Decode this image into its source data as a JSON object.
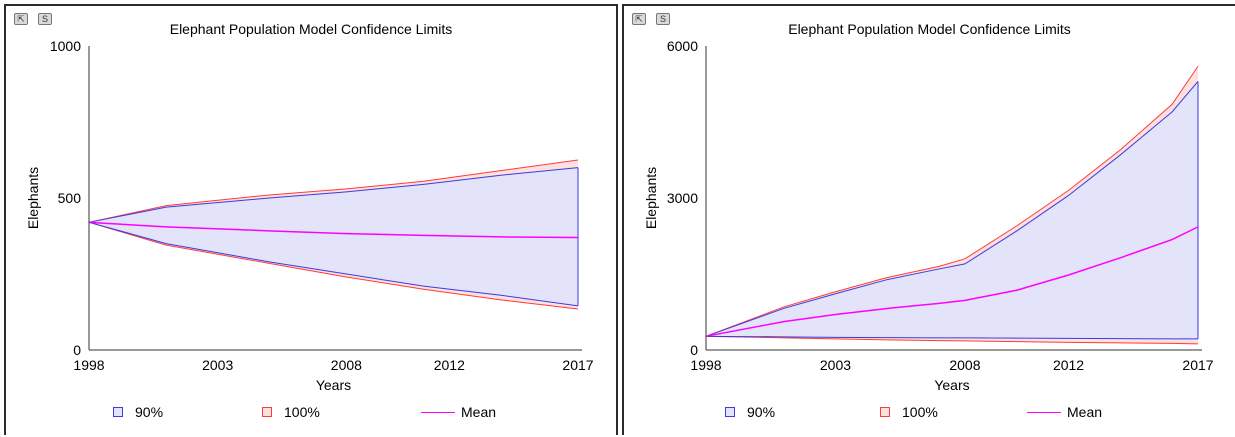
{
  "colors": {
    "band90_stroke": "#3b3be0",
    "band90_fill": "#e3e3fa",
    "band100_stroke": "#ff3b3b",
    "band100_fill": "#fde0e0",
    "mean": "#ff00ff"
  },
  "buttons": {
    "expand_icon": "expand-icon",
    "snapshot_label": "S"
  },
  "chart_data": [
    {
      "type": "area",
      "title": "Elephant Population Model Confidence Limits",
      "xlabel": "Years",
      "ylabel": "Elephants",
      "x_ticks": [
        "1998",
        "2003",
        "2008",
        "2012",
        "2017"
      ],
      "y_ticks": [
        "0",
        "500",
        "1000"
      ],
      "xlim": [
        1998,
        2017
      ],
      "ylim": [
        0,
        1000
      ],
      "legend": [
        "90%",
        "100%",
        "Mean"
      ],
      "legend_position": "bottom",
      "x": [
        1998,
        2001,
        2005,
        2008,
        2011,
        2014,
        2017
      ],
      "series": [
        {
          "name": "100%",
          "role": "band",
          "upper": [
            420,
            475,
            510,
            530,
            555,
            590,
            625
          ],
          "lower": [
            420,
            345,
            285,
            240,
            200,
            165,
            135
          ]
        },
        {
          "name": "90%",
          "role": "band",
          "upper": [
            420,
            470,
            500,
            520,
            545,
            575,
            600
          ],
          "lower": [
            420,
            350,
            290,
            250,
            210,
            180,
            145
          ]
        },
        {
          "name": "Mean",
          "role": "line",
          "values": [
            420,
            405,
            392,
            383,
            377,
            372,
            370
          ]
        }
      ]
    },
    {
      "type": "area",
      "title": "Elephant Population Model Confidence Limits",
      "xlabel": "Years",
      "ylabel": "Elephants",
      "x_ticks": [
        "1998",
        "2003",
        "2008",
        "2012",
        "2017"
      ],
      "y_ticks": [
        "0",
        "3000",
        "6000"
      ],
      "xlim": [
        1998,
        2017
      ],
      "ylim": [
        0,
        6000
      ],
      "legend": [
        "90%",
        "100%",
        "Mean"
      ],
      "legend_position": "bottom",
      "x": [
        1998,
        2001,
        2003,
        2005,
        2007,
        2008,
        2010,
        2012,
        2014,
        2016,
        2017
      ],
      "series": [
        {
          "name": "100%",
          "role": "band",
          "upper": [
            270,
            850,
            1150,
            1430,
            1650,
            1800,
            2450,
            3150,
            3950,
            4850,
            5600
          ],
          "lower": [
            270,
            240,
            220,
            200,
            185,
            180,
            165,
            150,
            140,
            130,
            120
          ]
        },
        {
          "name": "90%",
          "role": "band",
          "upper": [
            270,
            820,
            1110,
            1390,
            1600,
            1700,
            2350,
            3050,
            3850,
            4700,
            5300
          ],
          "lower": [
            270,
            260,
            250,
            245,
            240,
            240,
            235,
            230,
            225,
            220,
            220
          ]
        },
        {
          "name": "Mean",
          "role": "line",
          "values": [
            270,
            560,
            700,
            820,
            920,
            980,
            1180,
            1480,
            1820,
            2180,
            2430
          ]
        }
      ]
    }
  ]
}
